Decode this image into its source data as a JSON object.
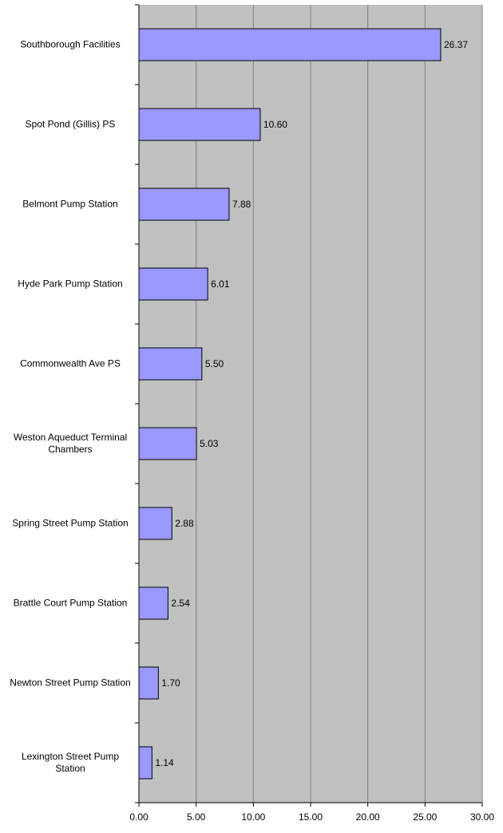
{
  "chart_data": {
    "type": "bar",
    "orientation": "horizontal",
    "categories": [
      "Southborough Facilities",
      "Spot Pond (Gillis) PS",
      "Belmont Pump Station",
      "Hyde Park Pump Station",
      "Commonwealth Ave PS",
      "Weston Aqueduct Terminal Chambers",
      "Spring Street Pump Station",
      "Brattle Court Pump Station",
      "Newton Street Pump Station",
      "Lexington Street Pump Station"
    ],
    "values": [
      26.37,
      10.6,
      7.88,
      6.01,
      5.5,
      5.03,
      2.88,
      2.54,
      1.7,
      1.14
    ],
    "data_labels": [
      "26.37",
      "10.60",
      "7.88",
      "6.01",
      "5.50",
      "5.03",
      "2.88",
      "2.54",
      "1.70",
      "1.14"
    ],
    "x_ticks": [
      "0.00",
      "5.00",
      "10.00",
      "15.00",
      "20.00",
      "25.00",
      "30.00"
    ],
    "xlim": [
      0,
      30
    ],
    "title": "",
    "xlabel": "",
    "ylabel": "",
    "grid": true,
    "legend": false,
    "colors": {
      "plot_background": "#c0c0c0",
      "bar_fill": "#9999ff",
      "bar_stroke": "#000000",
      "gridline": "#808080",
      "axis": "#000000"
    }
  }
}
